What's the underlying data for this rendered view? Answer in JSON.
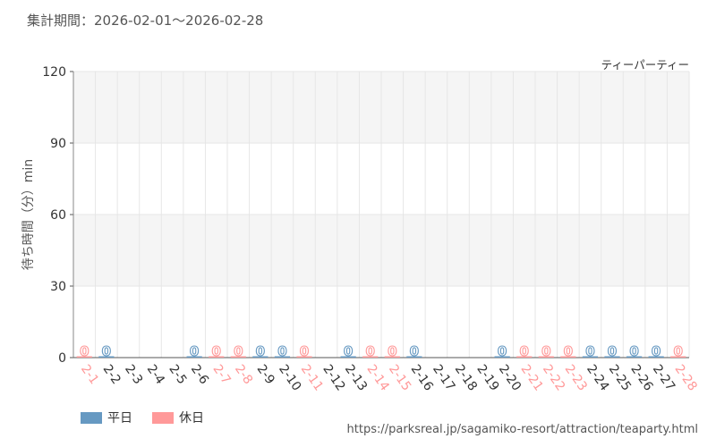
{
  "header": {
    "period": "集計期間：2026-02-01～2026-02-28",
    "attraction": "ティーパーティー"
  },
  "chart_data": {
    "type": "bar",
    "ylabel": "待ち時間（分）min",
    "ylim": [
      0,
      120
    ],
    "yticks": [
      0,
      30,
      60,
      90,
      120
    ],
    "grid": true,
    "categories": [
      "2-1",
      "2-2",
      "2-3",
      "2-4",
      "2-5",
      "2-6",
      "2-7",
      "2-8",
      "2-9",
      "2-10",
      "2-11",
      "2-12",
      "2-13",
      "2-14",
      "2-15",
      "2-16",
      "2-17",
      "2-18",
      "2-19",
      "2-20",
      "2-21",
      "2-22",
      "2-23",
      "2-24",
      "2-25",
      "2-26",
      "2-27",
      "2-28"
    ],
    "day_type": [
      "holiday",
      "weekday",
      null,
      null,
      null,
      "weekday",
      "holiday",
      "holiday",
      "weekday",
      "weekday",
      "holiday",
      null,
      "weekday",
      "holiday",
      "holiday",
      "weekday",
      null,
      null,
      null,
      "weekday",
      "holiday",
      "holiday",
      "holiday",
      "weekday",
      "weekday",
      "weekday",
      "weekday",
      "holiday"
    ],
    "values": [
      0,
      0,
      null,
      null,
      null,
      0,
      0,
      0,
      0,
      0,
      0,
      null,
      0,
      0,
      0,
      0,
      null,
      null,
      null,
      0,
      0,
      0,
      0,
      0,
      0,
      0,
      0,
      0
    ],
    "label_day_type": [
      "holiday",
      "weekday",
      "weekday",
      "weekday",
      "weekday",
      "weekday",
      "holiday",
      "holiday",
      "weekday",
      "weekday",
      "holiday",
      "weekday",
      "weekday",
      "holiday",
      "holiday",
      "weekday",
      "weekday",
      "weekday",
      "weekday",
      "weekday",
      "holiday",
      "holiday",
      "holiday",
      "weekday",
      "weekday",
      "weekday",
      "weekday",
      "holiday"
    ],
    "legend_position": "bottom-left",
    "legend": [
      {
        "key": "weekday",
        "label": "平日"
      },
      {
        "key": "holiday",
        "label": "休日"
      }
    ]
  },
  "colors": {
    "weekday": "#6699c2",
    "holiday": "#ff9999",
    "axis_text": "#333333",
    "band": "#f5f5f5",
    "grid": "#e6e6e6"
  },
  "footer": {
    "source": "https://parksreal.jp/sagamiko-resort/attraction/teaparty.html"
  }
}
